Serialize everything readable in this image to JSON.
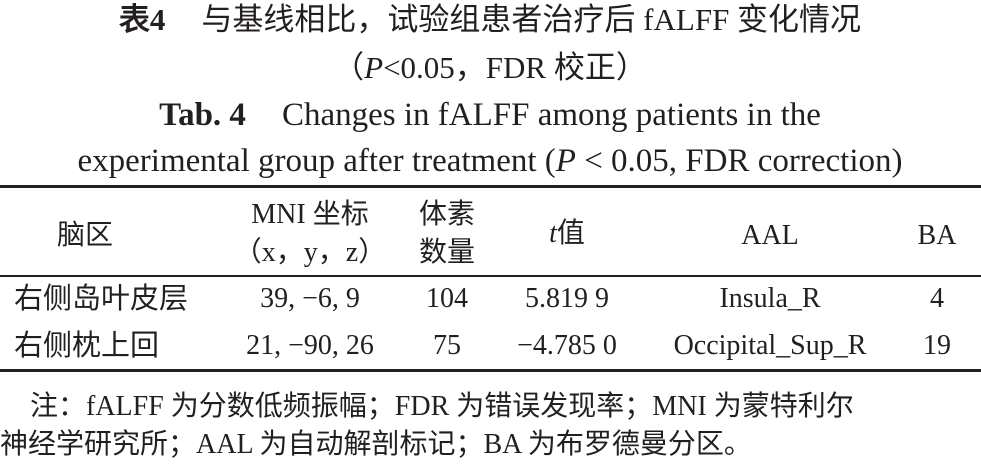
{
  "caption": {
    "cn_label": "表4",
    "cn_title": "与基线相比，试验组患者治疗后 fALFF 变化情况",
    "cn_cond": [
      "（",
      "P",
      "<0.05，FDR 校正）"
    ],
    "en_label": "Tab. 4",
    "en_title_1": "Changes in fALFF among patients in the",
    "en_title_2": [
      "experimental group after treatment (",
      "P",
      " < 0.05, FDR correction)"
    ]
  },
  "table": {
    "header": [
      [
        "脑区"
      ],
      [
        "MNI 坐标",
        "（x，y，z）"
      ],
      [
        "体素",
        "数量"
      ],
      [
        "t",
        "值"
      ],
      [
        "AAL"
      ],
      [
        "BA"
      ]
    ],
    "rows": [
      [
        "右侧岛叶皮层",
        "39, −6, 9",
        104,
        "5.819 9",
        "Insula_R",
        4
      ],
      [
        "右侧枕上回",
        "21, −90, 26",
        75,
        "−4.785 0",
        "Occipital_Sup_R",
        19
      ]
    ]
  },
  "note": [
    "注：fALFF 为分数低频振幅；FDR 为错误发现率；MNI 为蒙特利尔",
    "神经学研究所；AAL 为自动解剖标记；BA 为布罗德曼分区。"
  ]
}
